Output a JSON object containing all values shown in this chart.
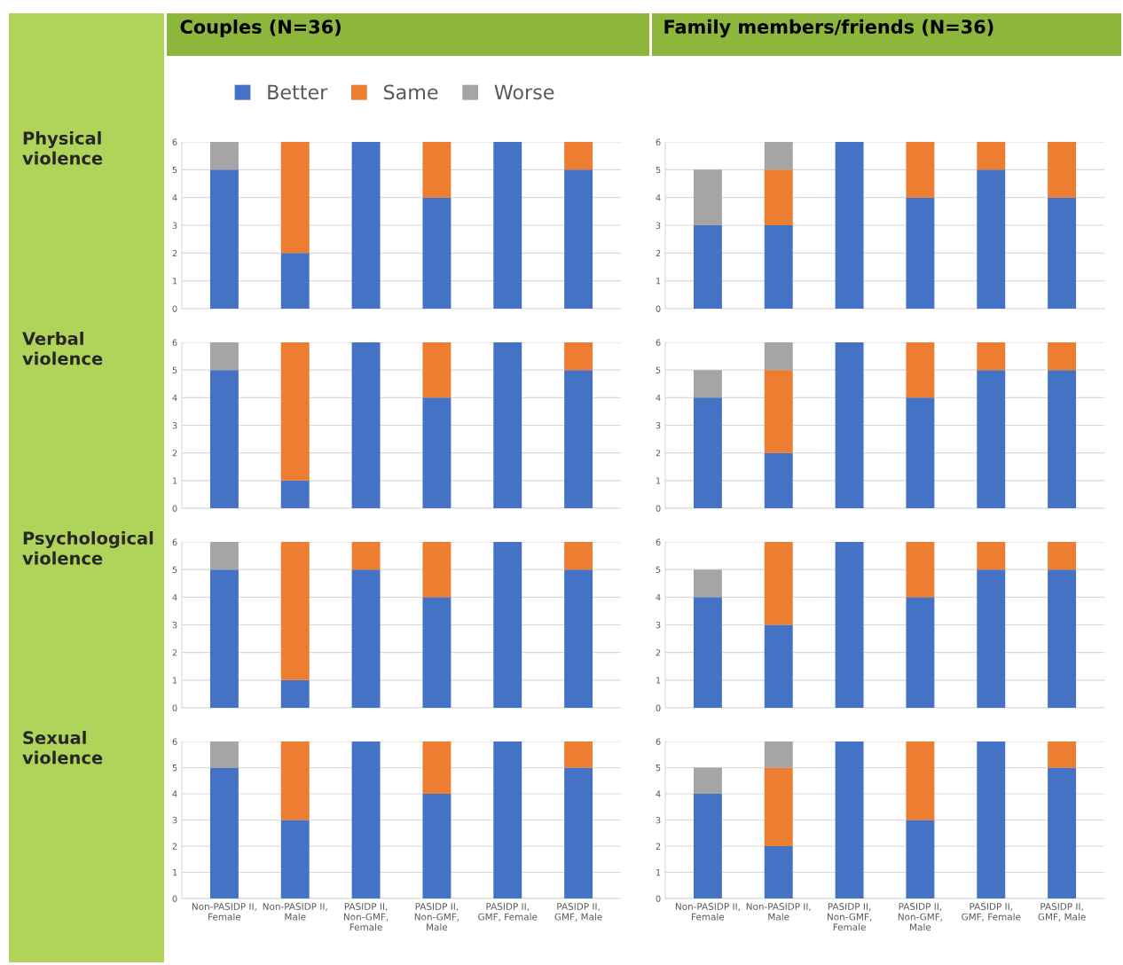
{
  "chart_data": [
    {
      "type": "bar",
      "stacked": true,
      "title": "Couples (N=36)",
      "ylabel": "Physical\nviolence",
      "legend": "top",
      "grid": "y",
      "tick_labels": "y",
      "ylim": [
        0,
        6
      ],
      "yticks": [
        0,
        1,
        2,
        3,
        4,
        5,
        6
      ],
      "categories": [
        null,
        null,
        null,
        null,
        null,
        null
      ],
      "series": [
        {
          "name": "Better",
          "color": "#4472c4",
          "values": [
            5,
            2,
            6,
            4,
            6,
            5
          ]
        },
        {
          "name": "Same",
          "color": "#ed7d31",
          "values": [
            0,
            4,
            0,
            2,
            0,
            1
          ]
        },
        {
          "name": "Worse",
          "color": "#a5a5a5",
          "values": [
            1,
            0,
            0,
            0,
            0,
            0
          ]
        }
      ]
    },
    {
      "type": "bar",
      "stacked": true,
      "title": "Family members/friends (N=36)",
      "grid": "y",
      "tick_labels": "y",
      "ylim": [
        0,
        6
      ],
      "yticks": [
        0,
        1,
        2,
        3,
        4,
        5,
        6
      ],
      "categories": [
        null,
        null,
        null,
        null,
        null,
        null
      ],
      "series": [
        {
          "color": "#4472c4",
          "values": [
            3,
            3,
            6,
            4,
            5,
            4
          ]
        },
        {
          "color": "#ed7d31",
          "values": [
            0,
            2,
            0,
            2,
            1,
            2
          ]
        },
        {
          "color": "#a5a5a5",
          "values": [
            2,
            1,
            0,
            0,
            0,
            0
          ]
        }
      ]
    },
    {
      "type": "bar",
      "stacked": true,
      "ylabel": "Verbal\nviolence",
      "grid": "y",
      "tick_labels": "y",
      "ylim": [
        0,
        6
      ],
      "yticks": [
        0,
        1,
        2,
        3,
        4,
        5,
        6
      ],
      "categories": [
        null,
        null,
        null,
        null,
        null,
        null
      ],
      "series": [
        {
          "color": "#4472c4",
          "values": [
            5,
            1,
            6,
            4,
            6,
            5
          ]
        },
        {
          "color": "#ed7d31",
          "values": [
            0,
            5,
            0,
            2,
            0,
            1
          ]
        },
        {
          "color": "#a5a5a5",
          "values": [
            1,
            0,
            0,
            0,
            0,
            0
          ]
        }
      ]
    },
    {
      "type": "bar",
      "stacked": true,
      "grid": "y",
      "tick_labels": "y",
      "ylim": [
        0,
        6
      ],
      "yticks": [
        0,
        1,
        2,
        3,
        4,
        5,
        6
      ],
      "categories": [
        null,
        null,
        null,
        null,
        null,
        null
      ],
      "series": [
        {
          "color": "#4472c4",
          "values": [
            4,
            2,
            6,
            4,
            5,
            5
          ]
        },
        {
          "color": "#ed7d31",
          "values": [
            0,
            3,
            0,
            2,
            1,
            1
          ]
        },
        {
          "color": "#a5a5a5",
          "values": [
            1,
            1,
            0,
            0,
            0,
            0
          ]
        }
      ]
    },
    {
      "type": "bar",
      "stacked": true,
      "ylabel": "Psychological\nviolence",
      "grid": "y",
      "tick_labels": "y",
      "ylim": [
        0,
        6
      ],
      "yticks": [
        0,
        1,
        2,
        3,
        4,
        5,
        6
      ],
      "categories": [
        null,
        null,
        null,
        null,
        null,
        null
      ],
      "series": [
        {
          "color": "#4472c4",
          "values": [
            5,
            1,
            5,
            4,
            6,
            5
          ]
        },
        {
          "color": "#ed7d31",
          "values": [
            0,
            5,
            1,
            2,
            0,
            1
          ]
        },
        {
          "color": "#a5a5a5",
          "values": [
            1,
            0,
            0,
            0,
            0,
            0
          ]
        }
      ]
    },
    {
      "type": "bar",
      "stacked": true,
      "grid": "y",
      "tick_labels": "y",
      "ylim": [
        0,
        6
      ],
      "yticks": [
        0,
        1,
        2,
        3,
        4,
        5,
        6
      ],
      "categories": [
        null,
        null,
        null,
        null,
        null,
        null
      ],
      "series": [
        {
          "color": "#4472c4",
          "values": [
            4,
            3,
            6,
            4,
            5,
            5
          ]
        },
        {
          "color": "#ed7d31",
          "values": [
            0,
            3,
            0,
            2,
            1,
            1
          ]
        },
        {
          "color": "#a5a5a5",
          "values": [
            1,
            0,
            0,
            0,
            0,
            0
          ]
        }
      ]
    },
    {
      "type": "bar",
      "stacked": true,
      "ylabel": "Sexual\nviolence",
      "grid": "y",
      "ylim": [
        0,
        6
      ],
      "yticks": [
        0,
        1,
        2,
        3,
        4,
        5,
        6
      ],
      "categories": [
        "Non-PASIDP II,\nFemale",
        "Non-PASIDP II,\nMale",
        "PASIDP II,\nNon-GMF,\nFemale",
        "PASIDP II,\nNon-GMF,\nMale",
        "PASIDP II,\nGMF, Female",
        "PASIDP II,\nGMF, Male"
      ],
      "series": [
        {
          "color": "#4472c4",
          "values": [
            5,
            3,
            6,
            4,
            6,
            5
          ]
        },
        {
          "color": "#ed7d31",
          "values": [
            0,
            3,
            0,
            2,
            0,
            1
          ]
        },
        {
          "color": "#a5a5a5",
          "values": [
            1,
            0,
            0,
            0,
            0,
            0
          ]
        }
      ]
    },
    {
      "type": "bar",
      "stacked": true,
      "grid": "y",
      "ylim": [
        0,
        6
      ],
      "yticks": [
        0,
        1,
        2,
        3,
        4,
        5,
        6
      ],
      "categories": [
        "Non-PASIDP II,\nFemale",
        "Non-PASIDP II,\nMale",
        "PASIDP II,\nNon-GMF,\nFemale",
        "PASIDP II,\nNon-GMF,\nMale",
        "PASIDP II,\nGMF, Female",
        "PASIDP II,\nGMF, Male"
      ],
      "series": [
        {
          "color": "#4472c4",
          "values": [
            4,
            2,
            6,
            3,
            6,
            5
          ]
        },
        {
          "color": "#ed7d31",
          "values": [
            0,
            3,
            0,
            3,
            0,
            1
          ]
        },
        {
          "color": "#a5a5a5",
          "values": [
            1,
            1,
            0,
            0,
            0,
            0
          ]
        }
      ]
    }
  ]
}
